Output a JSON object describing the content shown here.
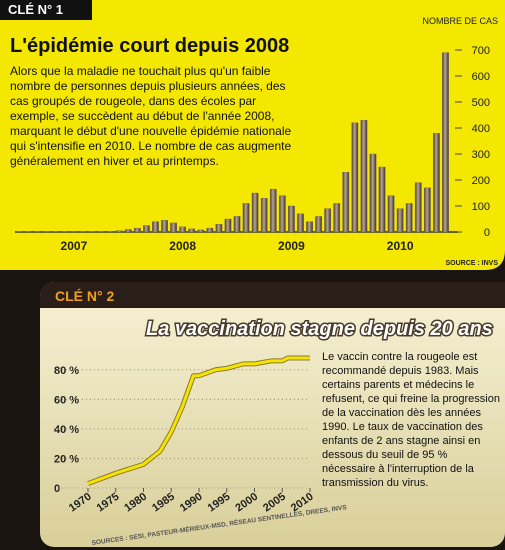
{
  "chart_data": [
    {
      "type": "bar",
      "header": "CLÉ N° 1",
      "title": "L'épidémie court depuis 2008",
      "text": "Alors que la maladie ne touchait plus qu'un faible nombre de personnes depuis plusieurs années, des cas groupés de rougeole, dans des écoles par exemple, se succèdent au début de l'année 2008, marquant le début d'une nouvelle épidémie nationale qui s'intensifie en 2010. Le nombre de cas augmente généralement en hiver et au printemps.",
      "y_label": "NOMBRE DE CAS",
      "source": "SOURCE : INVS",
      "categories": [
        null,
        null,
        null,
        null,
        null,
        null,
        "2007",
        null,
        null,
        null,
        null,
        null,
        null,
        null,
        null,
        null,
        null,
        null,
        "2008",
        null,
        null,
        null,
        null,
        null,
        null,
        null,
        null,
        null,
        null,
        null,
        "2009",
        null,
        null,
        null,
        null,
        null,
        null,
        null,
        null,
        null,
        null,
        null,
        "2010",
        null,
        null,
        null,
        null,
        null
      ],
      "values": [
        2,
        3,
        3,
        2,
        3,
        2,
        2,
        2,
        1,
        2,
        3,
        5,
        10,
        15,
        25,
        40,
        45,
        35,
        20,
        12,
        8,
        15,
        30,
        50,
        60,
        110,
        150,
        130,
        165,
        140,
        100,
        70,
        40,
        60,
        90,
        110,
        230,
        420,
        430,
        300,
        250,
        140,
        90,
        110,
        190,
        170,
        380,
        690
      ],
      "color": "#7d6b5c",
      "ylim": [
        0,
        700
      ],
      "yticks": [
        0,
        100,
        200,
        300,
        400,
        500,
        600,
        700
      ],
      "grid": false
    },
    {
      "type": "line",
      "header": "CLÉ N° 2",
      "title": "La vaccination stagne depuis 20 ans",
      "text": "Le vaccin contre la rougeole est recommandé depuis 1983. Mais certains parents et médecins le refusent, ce qui freine la progression de la vaccination dès les années 1990. Le taux de vaccination des enfants de 2 ans stagne ainsi en dessous du seuil de 95 % nécessaire à l'interruption de la transmission du virus.",
      "source": "SOURCES : SESI, PASTEUR-MÉRIEUX-MSD, RÉSEAU SENTINELLES, DREES, INVS",
      "x": [
        1970,
        1975,
        1980,
        1983,
        1985,
        1987,
        1989,
        1990,
        1993,
        1995,
        1998,
        2000,
        2003,
        2005,
        2006,
        2008,
        2010
      ],
      "values": [
        3,
        10,
        16,
        25,
        38,
        55,
        76,
        76,
        80,
        81,
        84,
        84,
        86,
        86,
        88,
        88,
        88
      ],
      "color": "#f5e400",
      "xlim": [
        1970,
        2010
      ],
      "xticks": [
        1970,
        1975,
        1980,
        1985,
        1990,
        1995,
        2000,
        2005,
        2010
      ],
      "ylim": [
        0,
        90
      ],
      "yticks": [
        0,
        {
          "value": 20,
          "label": "20 %"
        },
        {
          "value": 40,
          "label": "40 %"
        },
        {
          "value": 60,
          "label": "60 %"
        },
        {
          "value": 80,
          "label": "80 %"
        }
      ],
      "grid": true
    }
  ]
}
